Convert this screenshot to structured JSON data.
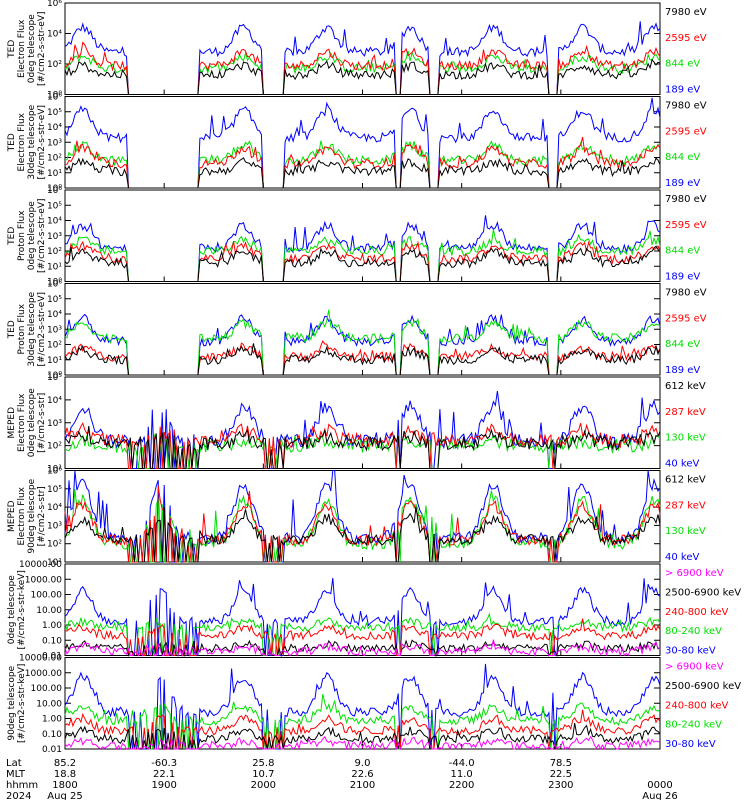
{
  "colors": {
    "black": "#000000",
    "red": "#ff0000",
    "green": "#00e000",
    "blue": "#0000ff",
    "magenta": "#ff00ff"
  },
  "chart_data": [
    {
      "type": "line",
      "instrument": "TED",
      "ylabel_lines": [
        "TED",
        "Electron Flux",
        "0deg telescope",
        "[#/cm2-s-str-eV]"
      ],
      "yscale": "log",
      "ylim": [
        1,
        1000000
      ],
      "y_ticks": [
        "10⁰",
        "10²",
        "10⁴",
        "10⁶"
      ],
      "channels": [
        {
          "label": "7980 eV",
          "color": "black",
          "base": 1.3,
          "burst": 0.6
        },
        {
          "label": "2595 eV",
          "color": "red",
          "base": 1.9,
          "burst": 0.9
        },
        {
          "label": "844 eV",
          "color": "green",
          "base": 1.7,
          "burst": 0.8
        },
        {
          "label": "189 eV",
          "color": "blue",
          "base": 2.8,
          "burst": 1.6
        }
      ]
    },
    {
      "type": "line",
      "instrument": "TED",
      "ylabel_lines": [
        "TED",
        "Electron Flux",
        "30deg telescope",
        "[#/cm2-s-str-eV]"
      ],
      "yscale": "log",
      "ylim": [
        1,
        1000000
      ],
      "y_ticks": [
        "10⁰",
        "10¹",
        "10²",
        "10³",
        "10⁴",
        "10⁵",
        "10⁶"
      ],
      "channels": [
        {
          "label": "7980 eV",
          "color": "black",
          "base": 1.1,
          "burst": 0.6
        },
        {
          "label": "2595 eV",
          "color": "red",
          "base": 1.6,
          "burst": 1.0
        },
        {
          "label": "844 eV",
          "color": "green",
          "base": 1.8,
          "burst": 1.0
        },
        {
          "label": "189 eV",
          "color": "blue",
          "base": 3.3,
          "burst": 1.8
        }
      ]
    },
    {
      "type": "line",
      "instrument": "TED",
      "ylabel_lines": [
        "TED",
        "Proton Flux",
        "0deg telescope",
        "[#/cm2-s-str-eV]"
      ],
      "yscale": "log",
      "ylim": [
        1,
        1000000
      ],
      "y_ticks": [
        "10⁰",
        "10¹",
        "10²",
        "10³",
        "10⁴",
        "10⁵",
        "10⁶"
      ],
      "channels": [
        {
          "label": "7980 eV",
          "color": "black",
          "base": 1.2,
          "burst": 0.8
        },
        {
          "label": "2595 eV",
          "color": "red",
          "base": 1.5,
          "burst": 0.8
        },
        {
          "label": "844 eV",
          "color": "green",
          "base": 2.0,
          "burst": 0.7
        },
        {
          "label": "189 eV",
          "color": "blue",
          "base": 2.2,
          "burst": 1.5
        }
      ]
    },
    {
      "type": "line",
      "instrument": "TED",
      "ylabel_lines": [
        "TED",
        "Proton Flux",
        "30deg telescope",
        "[#/cm2-s-str-eV]"
      ],
      "yscale": "log",
      "ylim": [
        1,
        1000000
      ],
      "y_ticks": [
        "10⁰",
        "10¹",
        "10²",
        "10³",
        "10⁴",
        "10⁵",
        "10⁶"
      ],
      "channels": [
        {
          "label": "7980 eV",
          "color": "black",
          "base": 1.0,
          "burst": 0.6
        },
        {
          "label": "2595 eV",
          "color": "red",
          "base": 1.2,
          "burst": 0.6
        },
        {
          "label": "844 eV",
          "color": "green",
          "base": 2.4,
          "burst": 1.0
        },
        {
          "label": "189 eV",
          "color": "blue",
          "base": 2.2,
          "burst": 1.5
        }
      ]
    },
    {
      "type": "line",
      "instrument": "MEPED",
      "ylabel_lines": [
        "MEPED",
        "Electron Flux",
        "0deg telescope",
        "[#/cm2-s-str]"
      ],
      "yscale": "log",
      "ylim": [
        10,
        100000
      ],
      "y_ticks": [
        "10¹",
        "10²",
        "10³",
        "10⁴",
        "10⁵"
      ],
      "channels": [
        {
          "label": "612 keV",
          "color": "black",
          "base": 2.1,
          "burst": 0.3
        },
        {
          "label": "287 keV",
          "color": "red",
          "base": 2.2,
          "burst": 0.5
        },
        {
          "label": "130 keV",
          "color": "green",
          "base": 2.0,
          "burst": 0.2
        },
        {
          "label": "40 keV",
          "color": "blue",
          "base": 2.2,
          "burst": 1.5
        }
      ]
    },
    {
      "type": "line",
      "instrument": "MEPED",
      "ylabel_lines": [
        "MEPED",
        "Electron Flux",
        "90deg telescope",
        "[#/cm2-s-str]"
      ],
      "yscale": "log",
      "ylim": [
        10,
        1000000
      ],
      "y_ticks": [
        "10¹",
        "10²",
        "10³",
        "10⁴",
        "10⁵",
        "10⁶"
      ],
      "channels": [
        {
          "label": "612 keV",
          "color": "black",
          "base": 2.2,
          "burst": 1.2
        },
        {
          "label": "287 keV",
          "color": "red",
          "base": 2.2,
          "burst": 1.9
        },
        {
          "label": "130 keV",
          "color": "green",
          "base": 2.0,
          "burst": 2.4
        },
        {
          "label": "40 keV",
          "color": "blue",
          "base": 2.3,
          "burst": 3.0
        }
      ]
    },
    {
      "type": "line",
      "instrument": "MEPED",
      "ylabel_lines": [
        "0deg telescope",
        "[#/cm2-s-str-keV]"
      ],
      "yscale": "log",
      "ylim": [
        0.01,
        30000
      ],
      "y_ticks": [
        "0.01",
        "0.10",
        "1.00",
        "10.00",
        "100.00",
        "1000.00",
        "10000.00"
      ],
      "channels": [
        {
          "label": "> 6900 keV",
          "color": "magenta",
          "base": -1.7,
          "burst": 0.3
        },
        {
          "label": "2500-6900 keV",
          "color": "black",
          "base": -1.5,
          "burst": 0.3
        },
        {
          "label": "240-800 keV",
          "color": "red",
          "base": -0.6,
          "burst": 0.6
        },
        {
          "label": "80-240 keV",
          "color": "green",
          "base": 0.0,
          "burst": 0.4
        },
        {
          "label": "30-80 keV",
          "color": "blue",
          "base": 0.4,
          "burst": 2.2
        }
      ]
    },
    {
      "type": "line",
      "instrument": "MEPED",
      "ylabel_lines": [
        "90deg telescope",
        "[#/cm2-s-str-keV]"
      ],
      "yscale": "log",
      "ylim": [
        0.01,
        30000
      ],
      "y_ticks": [
        "0.01",
        "0.10",
        "1.00",
        "10.00",
        "100.00",
        "1000.00",
        "10000.00"
      ],
      "channels": [
        {
          "label": "> 6900 keV",
          "color": "magenta",
          "base": -1.8,
          "burst": 0.4
        },
        {
          "label": "2500-6900 keV",
          "color": "black",
          "base": -1.3,
          "burst": 0.6
        },
        {
          "label": "240-800 keV",
          "color": "red",
          "base": -0.7,
          "burst": 0.9
        },
        {
          "label": "80-240 keV",
          "color": "green",
          "base": 0.0,
          "burst": 1.0
        },
        {
          "label": "30-80 keV",
          "color": "blue",
          "base": 0.6,
          "burst": 2.5
        }
      ]
    }
  ],
  "x_axis": {
    "row_titles": [
      "Lat",
      "MLT",
      "hhmm",
      "2024"
    ],
    "columns": [
      {
        "lat": "85.2",
        "mlt": "18.8",
        "hhmm": "1800",
        "date": "Aug 25"
      },
      {
        "lat": "-60.3",
        "mlt": "22.1",
        "hhmm": "1900",
        "date": ""
      },
      {
        "lat": "25.8",
        "mlt": "10.7",
        "hhmm": "2000",
        "date": ""
      },
      {
        "lat": "9.0",
        "mlt": "22.6",
        "hhmm": "2100",
        "date": ""
      },
      {
        "lat": "-44.0",
        "mlt": "11.0",
        "hhmm": "2200",
        "date": ""
      },
      {
        "lat": "78.5",
        "mlt": "22.5",
        "hhmm": "2300",
        "date": ""
      },
      {
        "lat": "",
        "mlt": "",
        "hhmm": "0000",
        "date": "Aug 26"
      }
    ]
  }
}
